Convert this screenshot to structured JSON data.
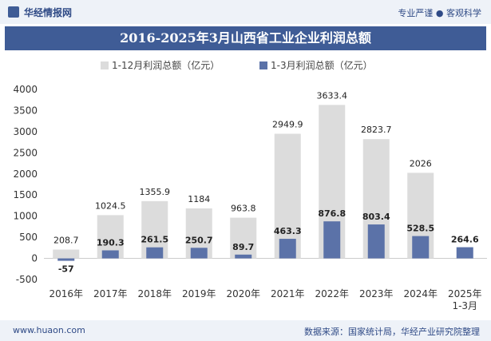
{
  "header": {
    "brand": "华经情报网",
    "slogan": "专业严谨 ● 客观科学"
  },
  "title": "2016-2025年3月山西省工业企业利润总额",
  "footer": {
    "site": "www.huaon.com",
    "source": "数据来源：国家统计局，华经产业研究院整理"
  },
  "colors": {
    "annual": "#dcdcdc",
    "q1": "#5b72a8",
    "title_bg": "#3f5c96"
  },
  "chart_data": {
    "type": "bar",
    "categories": [
      "2016年",
      "2017年",
      "2018年",
      "2019年",
      "2020年",
      "2021年",
      "2022年",
      "2023年",
      "2024年",
      "2025年\n1-3月"
    ],
    "series": [
      {
        "name": "1-12月利润总额（亿元）",
        "values": [
          208.7,
          1024.5,
          1355.9,
          1184,
          963.8,
          2949.9,
          3633.4,
          2823.7,
          2026,
          null
        ]
      },
      {
        "name": "1-3月利润总额（亿元）",
        "values": [
          -57,
          190.3,
          261.5,
          250.7,
          89.7,
          463.3,
          876.8,
          803.4,
          528.5,
          264.6
        ]
      }
    ],
    "ylim": [
      -500,
      4000
    ],
    "yticks": [
      -500,
      0,
      500,
      1000,
      1500,
      2000,
      2500,
      3000,
      3500,
      4000
    ],
    "legend_position": "top-center"
  }
}
